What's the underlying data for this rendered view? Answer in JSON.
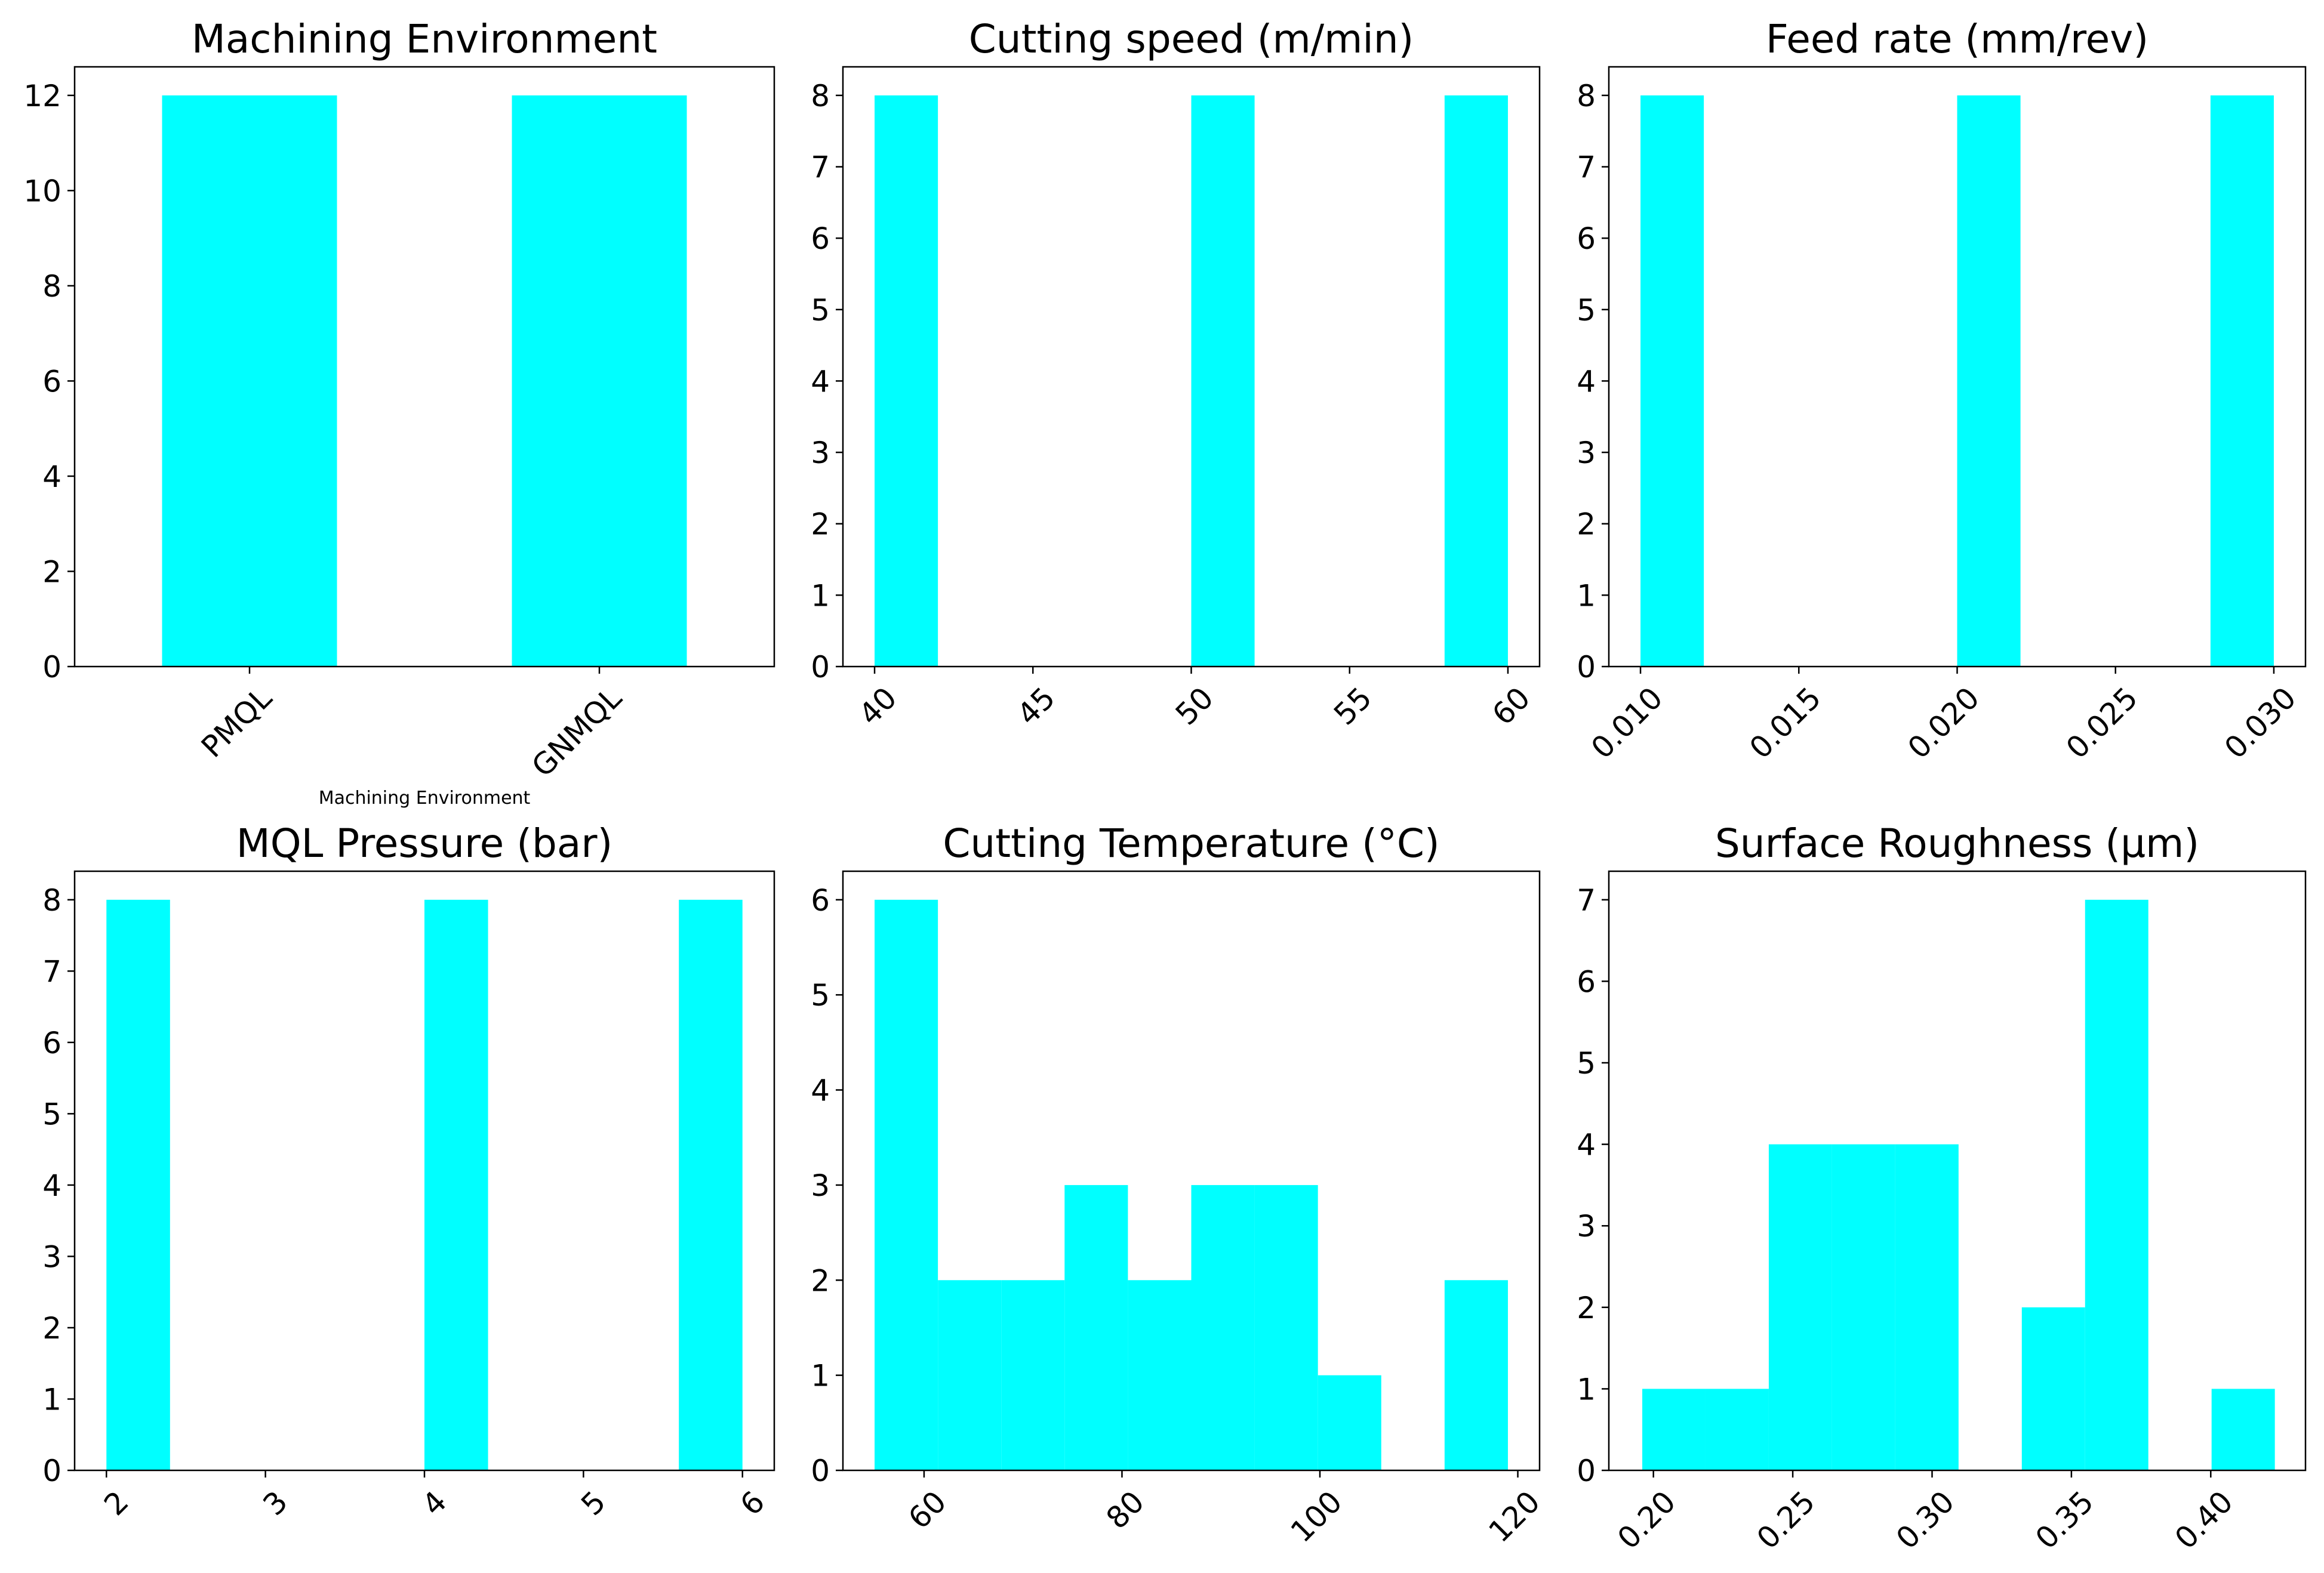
{
  "colors": {
    "bar": "#00ffff",
    "axis": "#000000",
    "background": "#ffffff"
  },
  "chart_data": [
    {
      "type": "bar",
      "title": "Machining Environment",
      "xlabel": "Machining Environment",
      "ylabel": "",
      "categories": [
        "PMQL",
        "GNMQL"
      ],
      "values": [
        12,
        12
      ],
      "ylim": [
        0,
        12.6
      ],
      "yticks": [
        0,
        2,
        4,
        6,
        8,
        10,
        12
      ],
      "ytick_labels": [
        "0",
        "2",
        "4",
        "6",
        "8",
        "10",
        "12"
      ],
      "xtick_labels": [
        "PMQL",
        "GNMQL"
      ],
      "grid": false
    },
    {
      "type": "histogram",
      "title": "Cutting speed (m/min)",
      "xlabel": "",
      "xlim": [
        39,
        61
      ],
      "ylim": [
        0,
        8.4
      ],
      "bins": [
        {
          "start": 40,
          "end": 42,
          "count": 8
        },
        {
          "start": 50,
          "end": 52,
          "count": 8
        },
        {
          "start": 58,
          "end": 60,
          "count": 8
        }
      ],
      "xticks": [
        40,
        45,
        50,
        55,
        60
      ],
      "xtick_labels": [
        "40",
        "45",
        "50",
        "55",
        "60"
      ],
      "yticks": [
        0,
        1,
        2,
        3,
        4,
        5,
        6,
        7,
        8
      ],
      "ytick_labels": [
        "0",
        "1",
        "2",
        "3",
        "4",
        "5",
        "6",
        "7",
        "8"
      ],
      "grid": false
    },
    {
      "type": "histogram",
      "title": "Feed rate (mm/rev)",
      "xlabel": "",
      "xlim": [
        0.009,
        0.031
      ],
      "ylim": [
        0,
        8.4
      ],
      "bins": [
        {
          "start": 0.01,
          "end": 0.012,
          "count": 8
        },
        {
          "start": 0.02,
          "end": 0.022,
          "count": 8
        },
        {
          "start": 0.028,
          "end": 0.03,
          "count": 8
        }
      ],
      "xticks": [
        0.01,
        0.015,
        0.02,
        0.025,
        0.03
      ],
      "xtick_labels": [
        "0.010",
        "0.015",
        "0.020",
        "0.025",
        "0.030"
      ],
      "yticks": [
        0,
        1,
        2,
        3,
        4,
        5,
        6,
        7,
        8
      ],
      "ytick_labels": [
        "0",
        "1",
        "2",
        "3",
        "4",
        "5",
        "6",
        "7",
        "8"
      ],
      "grid": false
    },
    {
      "type": "histogram",
      "title": "MQL Pressure (bar)",
      "xlabel": "",
      "xlim": [
        1.8,
        6.2
      ],
      "ylim": [
        0,
        8.4
      ],
      "bins": [
        {
          "start": 2.0,
          "end": 2.4,
          "count": 8
        },
        {
          "start": 4.0,
          "end": 4.4,
          "count": 8
        },
        {
          "start": 5.6,
          "end": 6.0,
          "count": 8
        }
      ],
      "xticks": [
        2,
        3,
        4,
        5,
        6
      ],
      "xtick_labels": [
        "2",
        "3",
        "4",
        "5",
        "6"
      ],
      "yticks": [
        0,
        1,
        2,
        3,
        4,
        5,
        6,
        7,
        8
      ],
      "ytick_labels": [
        "0",
        "1",
        "2",
        "3",
        "4",
        "5",
        "6",
        "7",
        "8"
      ],
      "grid": false
    },
    {
      "type": "histogram",
      "title": "Cutting Temperature (°C)",
      "xlabel": "",
      "xlim": [
        51.8,
        122.2
      ],
      "ylim": [
        0,
        6.3
      ],
      "bins": [
        {
          "start": 55.0,
          "end": 61.4,
          "count": 6
        },
        {
          "start": 61.4,
          "end": 67.8,
          "count": 2
        },
        {
          "start": 67.8,
          "end": 74.2,
          "count": 2
        },
        {
          "start": 74.2,
          "end": 80.6,
          "count": 3
        },
        {
          "start": 80.6,
          "end": 87.0,
          "count": 2
        },
        {
          "start": 87.0,
          "end": 93.4,
          "count": 3
        },
        {
          "start": 93.4,
          "end": 99.8,
          "count": 3
        },
        {
          "start": 99.8,
          "end": 106.2,
          "count": 1
        },
        {
          "start": 106.2,
          "end": 112.6,
          "count": 0
        },
        {
          "start": 112.6,
          "end": 119.0,
          "count": 2
        }
      ],
      "xticks": [
        60,
        80,
        100,
        120
      ],
      "xtick_labels": [
        "60",
        "80",
        "100",
        "120"
      ],
      "yticks": [
        0,
        1,
        2,
        3,
        4,
        5,
        6
      ],
      "ytick_labels": [
        "0",
        "1",
        "2",
        "3",
        "4",
        "5",
        "6"
      ],
      "grid": false
    },
    {
      "type": "histogram",
      "title": "Surface Roughness (μm)",
      "xlabel": "",
      "xlim": [
        0.184,
        0.434
      ],
      "ylim": [
        0,
        7.35
      ],
      "bins": [
        {
          "start": 0.196,
          "end": 0.2187,
          "count": 1
        },
        {
          "start": 0.2187,
          "end": 0.2414,
          "count": 1
        },
        {
          "start": 0.2414,
          "end": 0.2641,
          "count": 4
        },
        {
          "start": 0.2641,
          "end": 0.2868,
          "count": 4
        },
        {
          "start": 0.2868,
          "end": 0.3095,
          "count": 4
        },
        {
          "start": 0.3095,
          "end": 0.3322,
          "count": 0
        },
        {
          "start": 0.3322,
          "end": 0.3549,
          "count": 2
        },
        {
          "start": 0.3549,
          "end": 0.3776,
          "count": 7
        },
        {
          "start": 0.3776,
          "end": 0.4003,
          "count": 0
        },
        {
          "start": 0.4003,
          "end": 0.423,
          "count": 1
        }
      ],
      "xticks": [
        0.2,
        0.25,
        0.3,
        0.35,
        0.4
      ],
      "xtick_labels": [
        "0.20",
        "0.25",
        "0.30",
        "0.35",
        "0.40"
      ],
      "yticks": [
        0,
        1,
        2,
        3,
        4,
        5,
        6,
        7
      ],
      "ytick_labels": [
        "0",
        "1",
        "2",
        "3",
        "4",
        "5",
        "6",
        "7"
      ],
      "grid": false
    }
  ]
}
